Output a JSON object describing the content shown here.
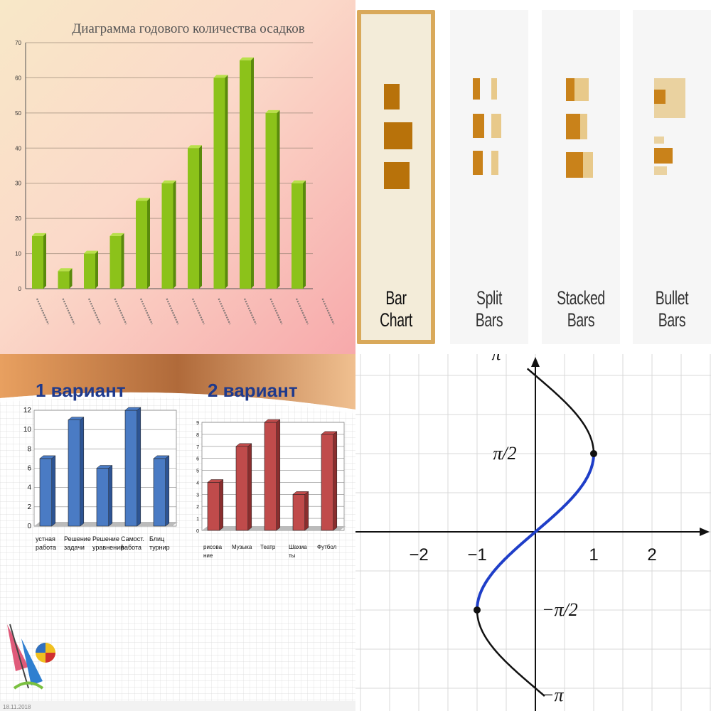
{
  "panel_precip": {
    "title": "Диаграмма годового количества осадков",
    "colors": {
      "bar": "#8cc21a",
      "bar_side": "#5a8a0c",
      "bar_top": "#b8e04a"
    }
  },
  "panel_bar_types": {
    "cards": [
      {
        "label": "Bar Chart",
        "selected": true,
        "icon": "bar-chart-icon"
      },
      {
        "label": "Split Bars",
        "selected": false,
        "icon": "split-bars-icon"
      },
      {
        "label": "Stacked Bars",
        "selected": false,
        "icon": "stacked-bars-icon"
      },
      {
        "label": "Bullet Bars",
        "selected": false,
        "icon": "bullet-bars-icon"
      }
    ],
    "colors": {
      "dark": "#b8720a",
      "light": "#e8c98a",
      "accent": "#d9a95a"
    }
  },
  "panel_variants": {
    "heading_left": "1 вариант",
    "heading_right": "2 вариант",
    "footer_date": "18.11.2018",
    "colors": {
      "heading": "#1f3a8c",
      "blue": "#4a7bc4",
      "red": "#c04b4b"
    }
  },
  "panel_arcsin": {
    "x_ticks": [
      "−2",
      "−1",
      "1",
      "2"
    ],
    "y_ticks": [
      "π",
      "π/2",
      "−π/2",
      "−π"
    ],
    "colors": {
      "curve": "#111111",
      "highlight": "#1f3ec8",
      "grid": "#d8d8d8"
    }
  },
  "chart_data": [
    {
      "type": "bar",
      "title": "Диаграмма годового количества осадков",
      "categories": [
        "",
        "",
        "",
        "",
        "",
        "",
        "",
        "",
        "",
        "",
        "",
        ""
      ],
      "values": [
        15,
        5,
        10,
        15,
        25,
        30,
        40,
        60,
        65,
        50,
        30,
        0
      ],
      "ylim": [
        0,
        70
      ],
      "yticks": [
        "0",
        "10",
        "20",
        "30",
        "40",
        "50",
        "60",
        "70"
      ],
      "grid": true
    },
    {
      "type": "bar",
      "title": "1 вариант",
      "categories": [
        "устная работа",
        "Решение задачи",
        "Решение уравнений",
        "Самост. работа",
        "Блиц турнир"
      ],
      "values": [
        7,
        11,
        6,
        12,
        7
      ],
      "ylim": [
        0,
        12
      ],
      "yticks": [
        "0",
        "2",
        "4",
        "6",
        "8",
        "10",
        "12"
      ],
      "grid": true
    },
    {
      "type": "bar",
      "title": "2 вариант",
      "categories": [
        "рисова ние",
        "Музыка",
        "Театр",
        "Шахма ты",
        "Футбол"
      ],
      "values": [
        4,
        7,
        9,
        3,
        8
      ],
      "ylim": [
        0,
        9
      ],
      "yticks": [
        "0",
        "1",
        "2",
        "3",
        "4",
        "5",
        "6",
        "7",
        "8",
        "9"
      ],
      "grid": true
    },
    {
      "type": "line",
      "x": [
        1,
        0,
        -1
      ],
      "y": [
        1.5708,
        0,
        -1.5708
      ],
      "xlim": [
        -3,
        3
      ],
      "ylim": [
        -3.1416,
        3.1416
      ],
      "grid": true
    }
  ]
}
